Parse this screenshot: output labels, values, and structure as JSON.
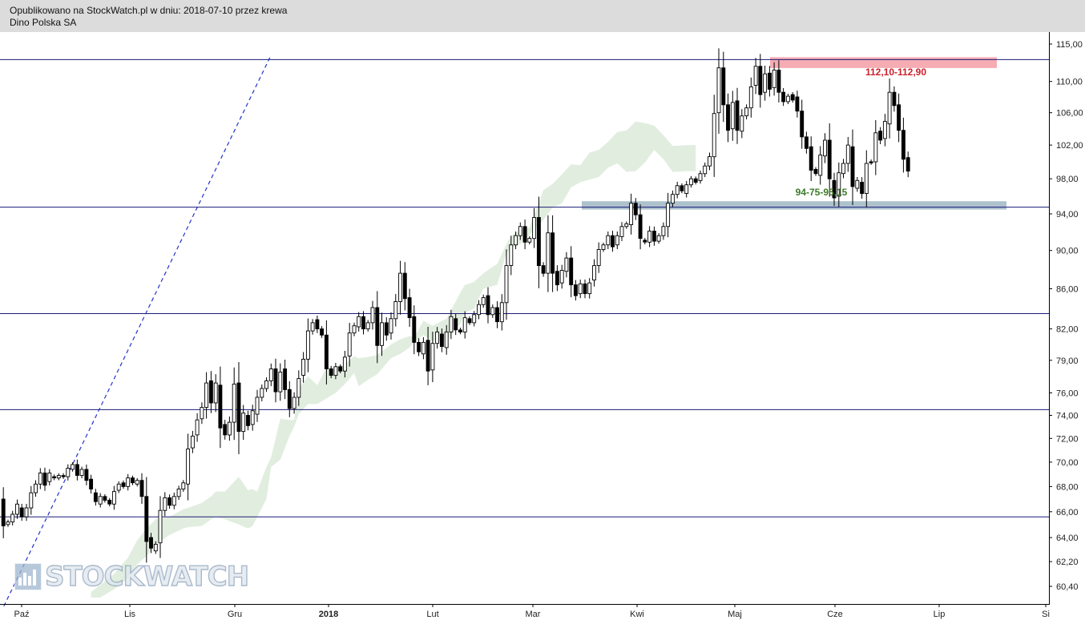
{
  "header": {
    "line1": "Opublikowano na StockWatch.pl w dniu: 2018-07-10 przez krewa",
    "line2": "Dino Polska SA"
  },
  "watermark": {
    "text": "STOCKWATCH",
    "icon": "bar-chart-icon"
  },
  "chart_data": {
    "type": "candlestick",
    "title": "",
    "xlabel": "",
    "ylabel": "",
    "ylim": [
      59.6,
      116.0
    ],
    "y_scale": "log",
    "y_ticks": [
      "115,00",
      "110,00",
      "106,00",
      "102,00",
      "98,00",
      "94,00",
      "90,00",
      "86,00",
      "82,00",
      "79,00",
      "76,00",
      "74,00",
      "72,00",
      "70,00",
      "68,00",
      "66,00",
      "64,00",
      "62,20",
      "60,40"
    ],
    "x_ticks": [
      "Paź",
      "Lis",
      "Gru",
      "2018",
      "Lut",
      "Mar",
      "Kwi",
      "Maj",
      "Cze",
      "Lip",
      "Si"
    ],
    "x_ticks_bold": [
      "2018"
    ],
    "horizontal_levels": [
      112.9,
      94.75,
      83.5,
      74.5,
      65.6
    ],
    "zones": [
      {
        "label": "112,10-112,90",
        "low": 112.1,
        "high": 112.9,
        "color": "#f4a3ab",
        "label_color": "#cc1f2a"
      },
      {
        "label": "94-75-95,15",
        "low": 94.75,
        "high": 95.15,
        "color": "#9fb7c3",
        "label_color": "#3d7a2b"
      }
    ],
    "trendline": {
      "from": [
        0.1,
        59.0
      ],
      "to": [
        58.0,
        113.5
      ],
      "color": "#2233cc",
      "style": "dashed"
    },
    "colors": {
      "up": "#ffffff",
      "down": "#000000",
      "cloud": "#dcebd9",
      "level": "#1a1a7a"
    },
    "candles": [
      [
        67.0,
        64.9
      ],
      [
        65.0,
        65.2
      ],
      [
        65.2,
        65.8
      ],
      [
        65.8,
        66.6
      ],
      [
        66.3,
        65.6
      ],
      [
        65.6,
        66.3
      ],
      [
        66.3,
        67.5
      ],
      [
        67.5,
        68.2
      ],
      [
        68.2,
        69.1
      ],
      [
        69.1,
        68.1
      ],
      [
        68.4,
        69.1
      ],
      [
        68.8,
        68.7
      ],
      [
        68.7,
        68.9
      ],
      [
        68.9,
        68.8
      ],
      [
        68.8,
        69.5
      ],
      [
        69.4,
        69.8
      ],
      [
        69.8,
        68.9
      ],
      [
        68.9,
        69.4
      ],
      [
        69.4,
        68.5
      ],
      [
        68.6,
        67.8
      ],
      [
        67.5,
        66.8
      ],
      [
        66.6,
        67.2
      ],
      [
        67.2,
        66.9
      ],
      [
        66.9,
        66.6
      ],
      [
        66.6,
        67.6
      ],
      [
        67.7,
        68.2
      ],
      [
        68.3,
        68.0
      ],
      [
        68.0,
        68.7
      ],
      [
        68.7,
        68.3
      ],
      [
        68.2,
        68.5
      ],
      [
        68.5,
        67.2
      ],
      [
        67.2,
        63.7
      ],
      [
        64.0,
        63.2
      ],
      [
        63.0,
        63.5
      ],
      [
        63.6,
        66.1
      ],
      [
        66.1,
        67.1
      ],
      [
        67.1,
        66.5
      ],
      [
        66.5,
        67.2
      ],
      [
        67.2,
        67.8
      ],
      [
        67.8,
        68.3
      ],
      [
        68.2,
        71.1
      ],
      [
        71.2,
        72.2
      ],
      [
        72.3,
        73.6
      ],
      [
        73.7,
        74.7
      ],
      [
        74.7,
        76.9
      ],
      [
        77.1,
        75.1
      ],
      [
        75.1,
        76.9
      ],
      [
        76.7,
        72.9
      ],
      [
        73.2,
        72.3
      ],
      [
        72.3,
        73.4
      ],
      [
        73.4,
        76.8
      ],
      [
        76.9,
        72.6
      ],
      [
        72.6,
        74.2
      ],
      [
        74.0,
        73.1
      ],
      [
        73.2,
        74.4
      ],
      [
        74.1,
        75.6
      ],
      [
        75.6,
        76.4
      ],
      [
        76.4,
        77.1
      ],
      [
        77.1,
        78.2
      ],
      [
        78.2,
        76.1
      ],
      [
        76.1,
        77.9
      ],
      [
        78.2,
        76.3
      ],
      [
        76.3,
        74.6
      ],
      [
        74.6,
        75.6
      ],
      [
        75.6,
        77.3
      ],
      [
        77.6,
        79.1
      ],
      [
        79.1,
        81.8
      ],
      [
        81.8,
        82.6
      ],
      [
        82.9,
        82.0
      ],
      [
        82.0,
        81.4
      ],
      [
        81.4,
        78.2
      ],
      [
        78.2,
        77.6
      ],
      [
        77.6,
        78.4
      ],
      [
        78.4,
        78.0
      ],
      [
        78.0,
        79.3
      ],
      [
        79.4,
        81.6
      ],
      [
        81.6,
        82.3
      ],
      [
        82.2,
        83.2
      ],
      [
        83.2,
        82.0
      ],
      [
        82.0,
        82.6
      ],
      [
        82.6,
        84.1
      ],
      [
        84.1,
        80.4
      ],
      [
        80.4,
        82.6
      ],
      [
        82.6,
        81.4
      ],
      [
        81.6,
        83.0
      ],
      [
        83.0,
        84.7
      ],
      [
        84.7,
        87.6
      ],
      [
        87.6,
        85.0
      ],
      [
        85.1,
        83.1
      ],
      [
        83.2,
        80.7
      ],
      [
        80.7,
        79.8
      ],
      [
        79.6,
        80.7
      ],
      [
        80.9,
        78.0
      ],
      [
        78.1,
        80.6
      ],
      [
        80.6,
        81.7
      ],
      [
        81.5,
        80.3
      ],
      [
        80.2,
        81.7
      ],
      [
        81.7,
        83.2
      ],
      [
        83.0,
        81.9
      ],
      [
        81.9,
        81.7
      ],
      [
        81.7,
        83.1
      ],
      [
        83.0,
        82.6
      ],
      [
        82.6,
        83.4
      ],
      [
        83.4,
        84.4
      ],
      [
        84.4,
        85.1
      ],
      [
        85.3,
        83.4
      ],
      [
        83.4,
        84.1
      ],
      [
        84.1,
        82.7
      ],
      [
        82.7,
        84.6
      ],
      [
        84.6,
        88.4
      ],
      [
        88.4,
        90.6
      ],
      [
        90.6,
        91.6
      ],
      [
        91.6,
        92.6
      ],
      [
        92.6,
        90.9
      ],
      [
        90.9,
        91.3
      ],
      [
        91.3,
        93.6
      ],
      [
        93.6,
        88.4
      ],
      [
        88.4,
        87.6
      ],
      [
        87.6,
        91.9
      ],
      [
        91.9,
        87.6
      ],
      [
        87.8,
        86.4
      ],
      [
        86.6,
        87.9
      ],
      [
        87.8,
        89.2
      ],
      [
        89.2,
        86.4
      ],
      [
        86.4,
        85.3
      ],
      [
        85.5,
        86.5
      ],
      [
        86.5,
        85.5
      ],
      [
        85.5,
        86.6
      ],
      [
        86.9,
        88.4
      ],
      [
        88.4,
        90.1
      ],
      [
        90.1,
        90.6
      ],
      [
        90.6,
        91.6
      ],
      [
        91.6,
        90.4
      ],
      [
        90.6,
        91.6
      ],
      [
        91.5,
        92.6
      ],
      [
        92.6,
        92.9
      ],
      [
        92.8,
        95.2
      ],
      [
        95.2,
        93.9
      ],
      [
        93.9,
        91.3
      ],
      [
        91.1,
        90.9
      ],
      [
        90.9,
        92.1
      ],
      [
        92.1,
        91.0
      ],
      [
        91.0,
        91.6
      ],
      [
        91.6,
        92.6
      ],
      [
        92.6,
        95.2
      ],
      [
        95.2,
        96.2
      ],
      [
        96.2,
        97.2
      ],
      [
        97.2,
        96.6
      ],
      [
        96.3,
        97.3
      ],
      [
        97.3,
        98.0
      ],
      [
        98.0,
        97.6
      ],
      [
        97.8,
        98.6
      ],
      [
        98.6,
        99.5
      ],
      [
        99.5,
        100.6
      ],
      [
        100.6,
        105.9
      ],
      [
        106.0,
        111.8
      ],
      [
        111.8,
        107.0
      ],
      [
        107.0,
        103.8
      ],
      [
        104.0,
        107.3
      ],
      [
        107.5,
        103.8
      ],
      [
        103.7,
        105.6
      ],
      [
        105.6,
        106.6
      ],
      [
        106.6,
        109.3
      ],
      [
        109.5,
        112.0
      ],
      [
        112.0,
        108.3
      ],
      [
        108.6,
        111.0
      ],
      [
        111.1,
        109.0
      ],
      [
        109.2,
        111.5
      ],
      [
        111.5,
        108.6
      ],
      [
        108.6,
        107.4
      ],
      [
        107.4,
        108.1
      ],
      [
        108.3,
        107.6
      ],
      [
        108.0,
        106.2
      ],
      [
        106.2,
        103.0
      ],
      [
        103.0,
        101.6
      ],
      [
        101.8,
        99.0
      ],
      [
        99.1,
        98.6
      ],
      [
        98.4,
        100.8
      ],
      [
        100.7,
        102.6
      ],
      [
        102.6,
        98.0
      ],
      [
        97.8,
        95.8
      ],
      [
        96.0,
        98.7
      ],
      [
        98.6,
        99.8
      ],
      [
        99.8,
        102.0
      ],
      [
        101.8,
        97.1
      ],
      [
        96.9,
        97.8
      ],
      [
        97.6,
        96.3
      ],
      [
        96.3,
        99.8
      ],
      [
        100.0,
        99.9
      ],
      [
        100.0,
        103.5
      ],
      [
        103.7,
        102.6
      ],
      [
        102.8,
        104.9
      ],
      [
        104.6,
        108.6
      ],
      [
        108.6,
        106.9
      ],
      [
        107.0,
        103.8
      ],
      [
        103.8,
        100.3
      ],
      [
        100.5,
        98.9
      ]
    ],
    "cloud_bounds": [
      [
        0,
        null,
        null
      ],
      [
        18,
        null,
        null
      ],
      [
        19,
        59.6,
        60.0
      ],
      [
        21,
        59.6,
        60.5
      ],
      [
        24,
        60.2,
        61.3
      ],
      [
        27,
        61.0,
        62.5
      ],
      [
        29,
        62.0,
        63.8
      ],
      [
        31,
        62.6,
        64.7
      ],
      [
        33,
        63.5,
        65.4
      ],
      [
        36,
        64.2,
        65.6
      ],
      [
        39,
        64.7,
        66.2
      ],
      [
        40,
        64.8,
        66.3
      ],
      [
        43,
        64.9,
        66.7
      ],
      [
        45,
        65.4,
        67.2
      ],
      [
        46,
        65.6,
        67.6
      ],
      [
        48,
        65.4,
        67.6
      ],
      [
        51,
        65.0,
        68.8
      ],
      [
        53,
        64.7,
        67.7
      ],
      [
        54,
        64.9,
        67.8
      ],
      [
        55,
        65.6,
        67.6
      ],
      [
        57,
        67.0,
        69.6
      ],
      [
        58,
        69.6,
        70.4
      ],
      [
        60,
        70.2,
        73.7
      ],
      [
        62,
        72.2,
        73.6
      ],
      [
        63,
        73.0,
        73.6
      ],
      [
        64,
        74.1,
        76.4
      ],
      [
        66,
        75.0,
        77.5
      ],
      [
        68,
        75.0,
        76.7
      ],
      [
        70,
        75.5,
        78.3
      ],
      [
        72,
        76.0,
        78.4
      ],
      [
        74,
        76.8,
        78.6
      ],
      [
        76,
        77.8,
        79.4
      ],
      [
        77,
        76.6,
        79.2
      ],
      [
        79,
        77.2,
        79.3
      ],
      [
        81,
        77.7,
        79.5
      ],
      [
        84,
        79.2,
        80.5
      ],
      [
        86,
        79.6,
        81.0
      ],
      [
        88,
        80.2,
        81.3
      ],
      [
        89,
        80.7,
        81.2
      ],
      [
        91,
        81.4,
        82.8
      ],
      [
        93,
        80.8,
        82.3
      ],
      [
        96,
        80.9,
        83.0
      ],
      [
        99,
        82.5,
        85.6
      ],
      [
        100,
        83.6,
        86.4
      ],
      [
        102,
        84.0,
        86.7
      ],
      [
        104,
        86.0,
        87.6
      ],
      [
        107,
        86.4,
        88.6
      ],
      [
        109,
        89.7,
        90.7
      ],
      [
        110,
        90.3,
        91.6
      ],
      [
        112,
        90.7,
        92.2
      ],
      [
        114,
        91.7,
        92.5
      ],
      [
        117,
        93.3,
        96.7
      ],
      [
        119,
        94.7,
        97.4
      ],
      [
        121,
        95.2,
        98.5
      ],
      [
        123,
        97.0,
        99.7
      ],
      [
        125,
        97.6,
        99.6
      ],
      [
        127,
        97.9,
        101.1
      ],
      [
        129,
        98.2,
        101.4
      ],
      [
        131,
        99.3,
        102.4
      ],
      [
        133,
        99.8,
        103.6
      ],
      [
        135,
        98.8,
        103.8
      ],
      [
        137,
        98.9,
        104.9
      ],
      [
        139,
        99.9,
        104.7
      ],
      [
        141,
        101.4,
        104.4
      ],
      [
        143,
        100.3,
        103.2
      ],
      [
        145,
        98.8,
        101.9
      ],
      [
        148,
        98.9,
        102.0
      ],
      [
        150,
        98.9,
        102.0
      ]
    ]
  }
}
